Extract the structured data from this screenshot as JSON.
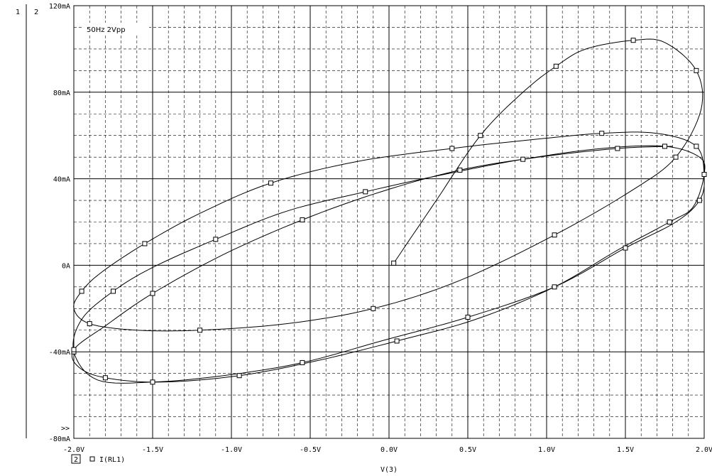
{
  "plot_markers": {
    "one": "1",
    "two": "2",
    "overflow": ">>"
  },
  "legend": {
    "index": "2",
    "trace": "I(RL1)"
  },
  "chart_data": {
    "type": "line",
    "title": "",
    "annotation": "50Hz 2Vpp",
    "xlabel": "V(3)",
    "ylabel": "",
    "xlim": [
      -2.0,
      2.0
    ],
    "ylim": [
      -80,
      120
    ],
    "x_unit": "V",
    "y_unit": "mA",
    "grid": true,
    "x_ticks": [
      -2.0,
      -1.5,
      -1.0,
      -0.5,
      0.0,
      0.5,
      1.0,
      1.5,
      2.0
    ],
    "x_tick_labels": [
      "-2.0V",
      "-1.5V",
      "-1.0V",
      "-0.5V",
      "0.0V",
      "0.5V",
      "1.0V",
      "1.5V",
      "2.0V"
    ],
    "y_ticks": [
      -80,
      -40,
      0,
      40,
      80,
      120
    ],
    "y_tick_labels": [
      "-80mA",
      "-40mA",
      "0A",
      "40mA",
      "80mA",
      "120mA"
    ],
    "series": [
      {
        "name": "I(RL1)",
        "marker": "square",
        "x": [
          0.03,
          0.3,
          0.58,
          0.85,
          1.06,
          1.25,
          1.55,
          1.75,
          1.95,
          1.98,
          1.82,
          1.55,
          1.05,
          0.45,
          -0.1,
          -0.65,
          -1.2,
          -1.6,
          -1.9,
          -2.0,
          -1.95,
          -1.82,
          -1.55,
          -1.2,
          -0.75,
          -0.2,
          0.4,
          0.9,
          1.35,
          1.7,
          1.95,
          2.0,
          1.97,
          1.82,
          1.5,
          1.05,
          0.5,
          -0.05,
          -0.55,
          -1.05,
          -1.5,
          -1.85,
          -2.0,
          -1.95,
          -1.75,
          -1.5,
          -1.1,
          -0.65,
          -0.15,
          0.35,
          0.85,
          1.35,
          1.75,
          1.97,
          2.0,
          1.93,
          1.78,
          1.45,
          1.05,
          0.55,
          0.05,
          -0.45,
          -0.95,
          -1.45,
          -1.8,
          -1.97,
          -2.0,
          -1.8,
          -1.5,
          -1.05,
          -0.55,
          -0.05,
          0.45,
          0.95,
          1.45,
          1.8
        ],
        "y": [
          1,
          30,
          60,
          80,
          92,
          100,
          104,
          103,
          90,
          72,
          50,
          35,
          14,
          -7,
          -20,
          -27,
          -30,
          -30,
          -27,
          -20,
          -12,
          -3,
          10,
          24,
          38,
          48,
          54,
          58,
          61,
          61,
          55,
          41,
          30,
          20,
          8,
          -10,
          -24,
          -35,
          -45,
          -51,
          -54,
          -53,
          -40,
          -25,
          -12,
          -1,
          12,
          25,
          34,
          42,
          49,
          54,
          55,
          50,
          42,
          27,
          20,
          7,
          -10,
          -25,
          -35,
          -44,
          -51,
          -54,
          -52,
          -47,
          -39,
          -28,
          -13,
          5,
          21,
          34,
          44,
          50,
          54,
          55
        ]
      }
    ]
  }
}
